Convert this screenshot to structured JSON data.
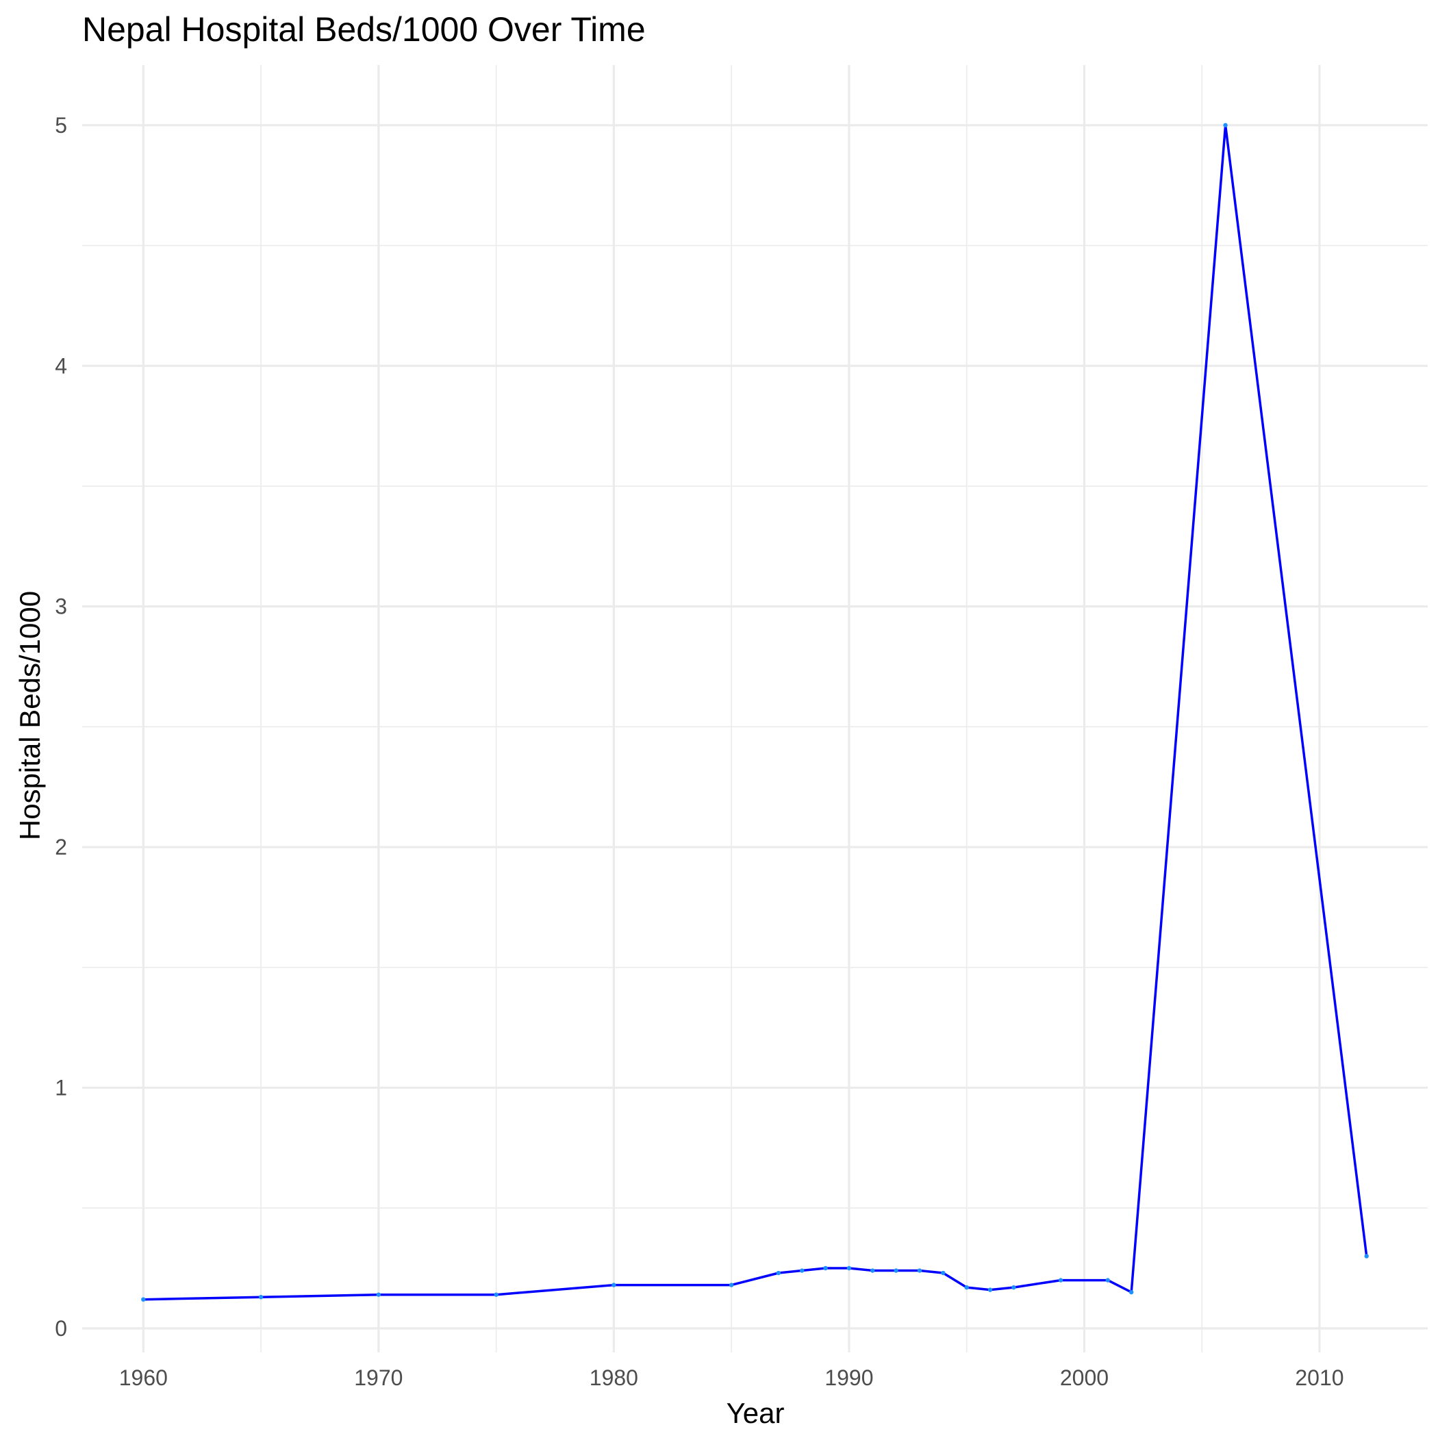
{
  "chart_data": {
    "type": "line",
    "title": "Nepal Hospital Beds/1000 Over Time",
    "xlabel": "Year",
    "ylabel": "Hospital Beds/1000",
    "xlim": [
      1957.4,
      2014.6
    ],
    "ylim": [
      -0.1,
      5.25
    ],
    "x_ticks": [
      1960,
      1970,
      1980,
      1990,
      2000,
      2010
    ],
    "x_tick_labels": [
      "1960",
      "1970",
      "1980",
      "1990",
      "2000",
      "2010"
    ],
    "y_ticks": [
      0,
      1,
      2,
      3,
      4,
      5
    ],
    "y_tick_labels": [
      "0",
      "1",
      "2",
      "3",
      "4",
      "5"
    ],
    "grid": true,
    "line_color": "#0000FF",
    "point_color": "#1E90FF",
    "x": [
      1960,
      1965,
      1970,
      1975,
      1980,
      1985,
      1987,
      1988,
      1989,
      1990,
      1991,
      1992,
      1993,
      1994,
      1995,
      1996,
      1997,
      1999,
      2001,
      2002,
      2006,
      2012
    ],
    "y": [
      0.12,
      0.13,
      0.14,
      0.14,
      0.18,
      0.18,
      0.23,
      0.24,
      0.25,
      0.25,
      0.24,
      0.24,
      0.24,
      0.23,
      0.17,
      0.16,
      0.17,
      0.2,
      0.2,
      0.15,
      5.0,
      0.3
    ]
  }
}
